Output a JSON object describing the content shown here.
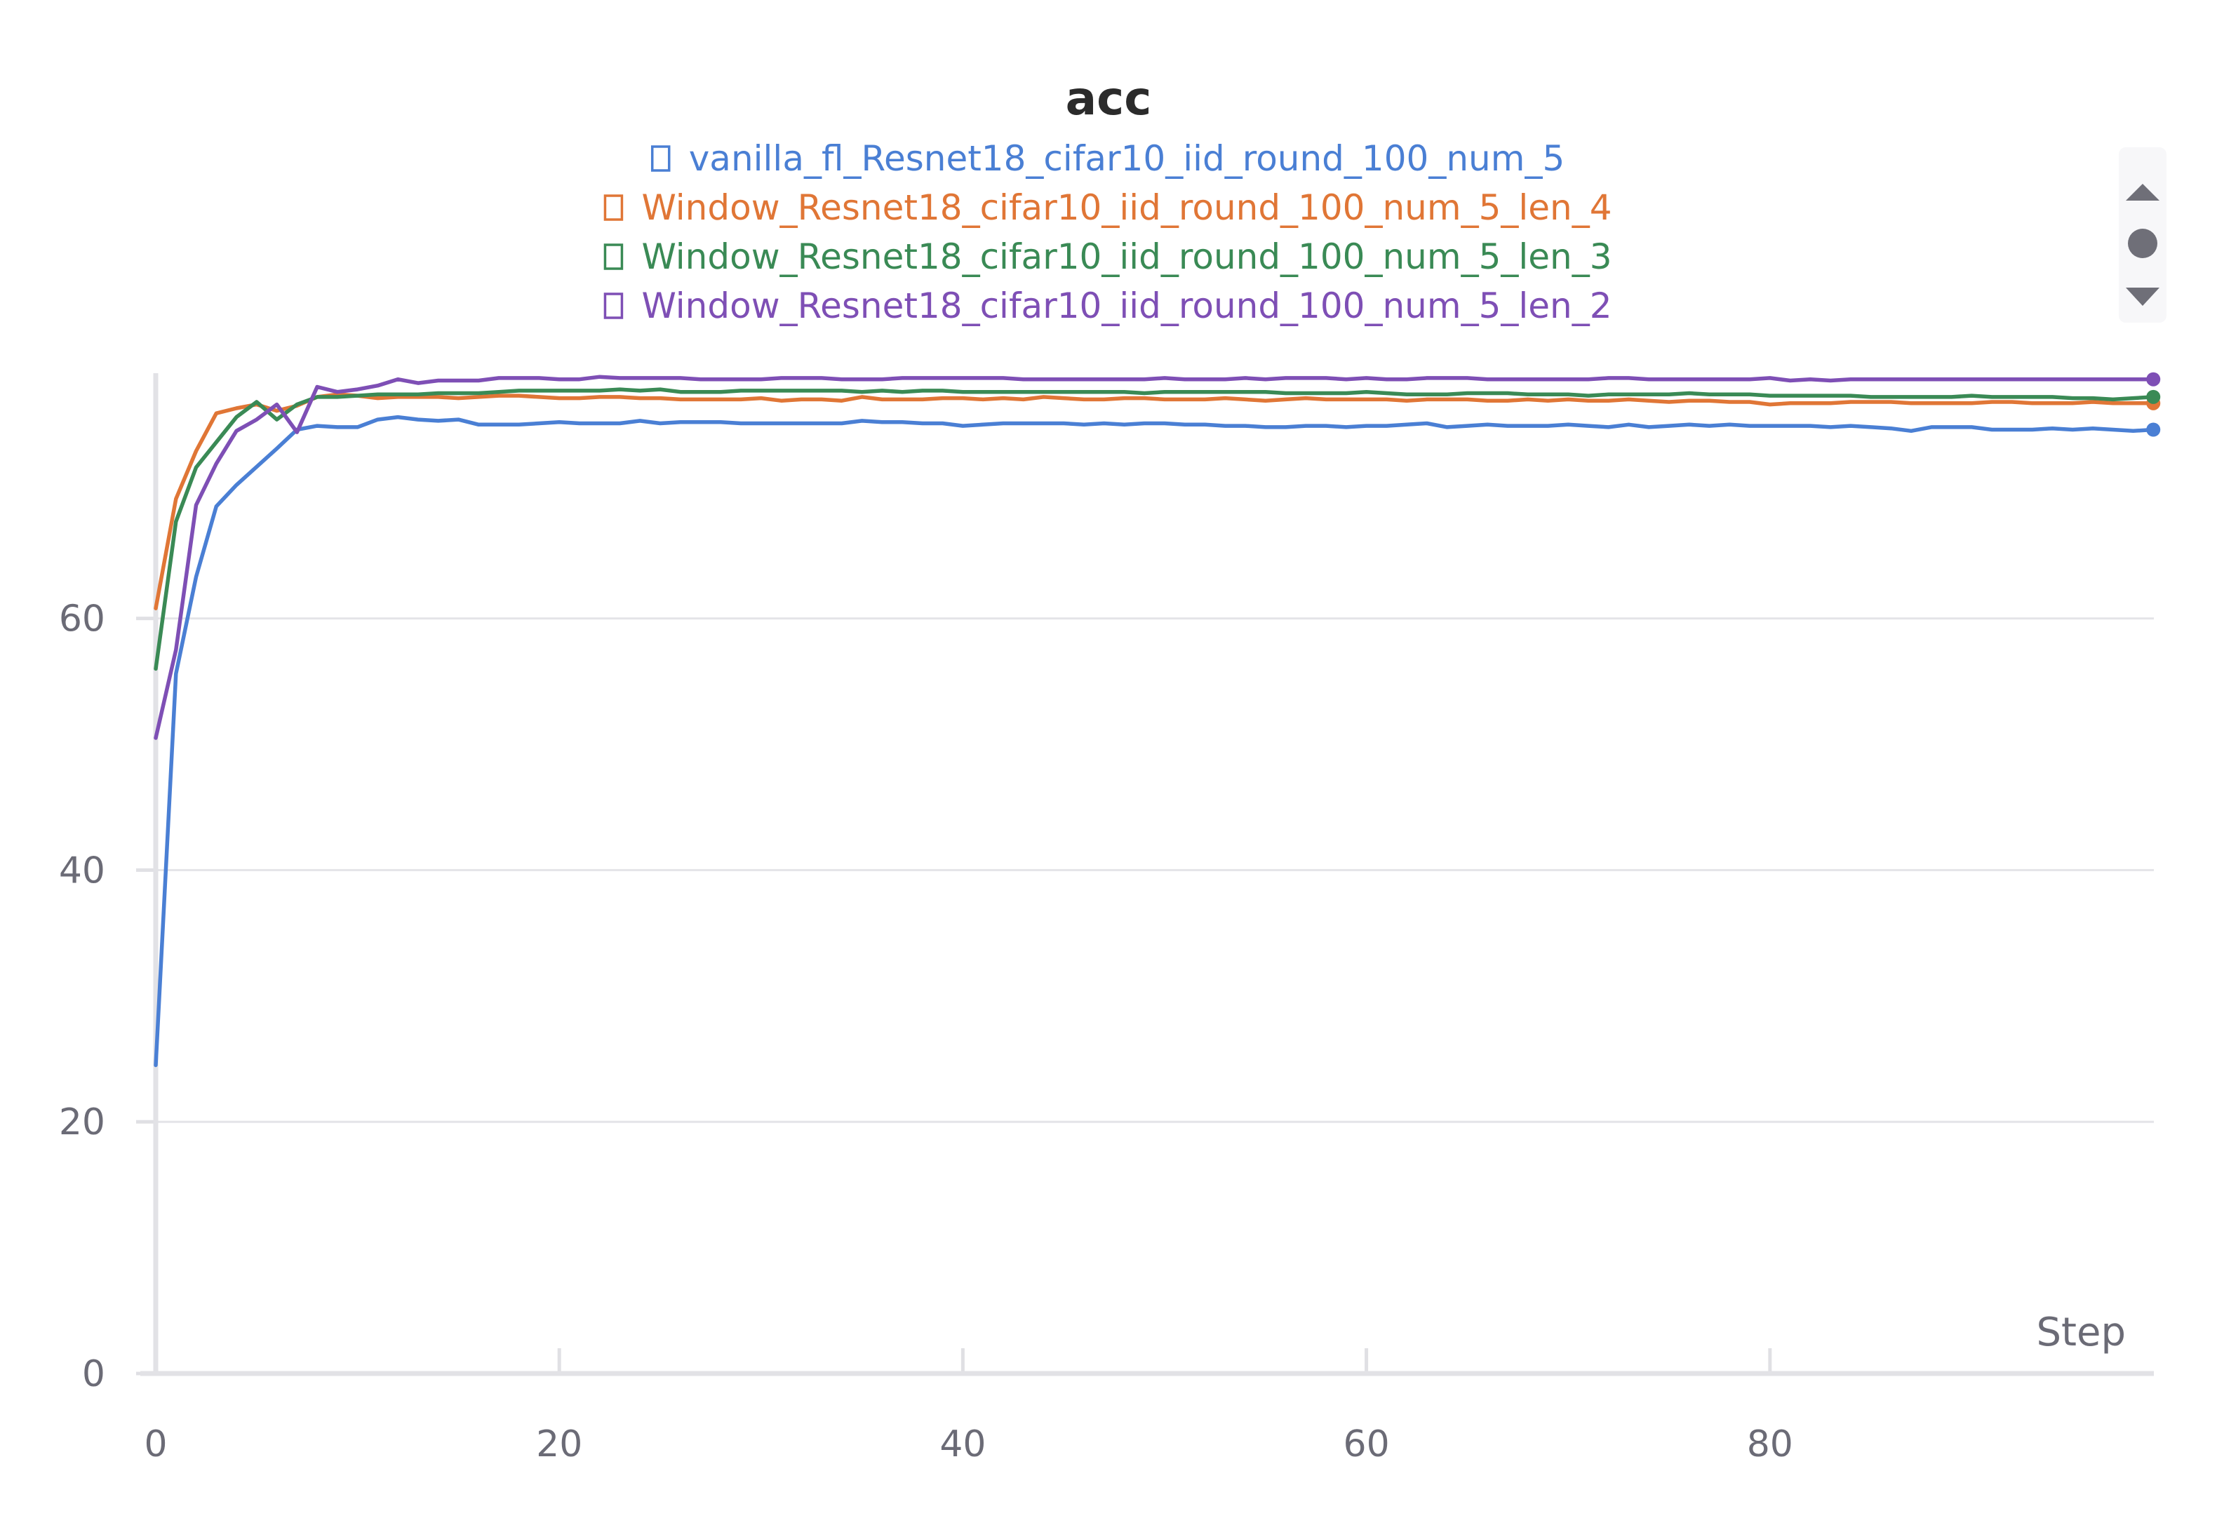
{
  "chart_data": {
    "type": "line",
    "title": "acc",
    "xlabel": "Step",
    "ylabel": "",
    "xlim": [
      0,
      99
    ],
    "ylim": [
      0,
      80
    ],
    "xticks": [
      0,
      20,
      40,
      60,
      80
    ],
    "yticks": [
      0,
      20,
      40,
      60
    ],
    "grid": true,
    "legend_position": "top-center",
    "series": [
      {
        "name": "vanilla_fl_Resnet18_cifar10_iid_round_100_num_5",
        "color": "#4a7fd4",
        "x": [
          0,
          1,
          2,
          3,
          4,
          6,
          7,
          8,
          9,
          10,
          11,
          12,
          13,
          14,
          15,
          16,
          17,
          18,
          19,
          20,
          21,
          22,
          23,
          24,
          25,
          26,
          27,
          28,
          29,
          30,
          31,
          32,
          33,
          34,
          35,
          36,
          37,
          38,
          39,
          40,
          41,
          42,
          43,
          44,
          45,
          46,
          47,
          48,
          49,
          50,
          51,
          52,
          53,
          54,
          55,
          56,
          57,
          58,
          59,
          60,
          61,
          62,
          63,
          64,
          65,
          66,
          67,
          68,
          69,
          70,
          71,
          72,
          73,
          74,
          75,
          76,
          77,
          78,
          79,
          80,
          81,
          82,
          83,
          84,
          85,
          86,
          87,
          88,
          89,
          90,
          91,
          92,
          93,
          94,
          95,
          96,
          97,
          98,
          99
        ],
        "y": [
          24.5,
          55.6,
          63.3,
          68.9,
          70.6,
          73.5,
          75.0,
          75.3,
          75.2,
          75.2,
          75.8,
          76.0,
          75.8,
          75.7,
          75.8,
          75.4,
          75.4,
          75.4,
          75.5,
          75.6,
          75.5,
          75.5,
          75.5,
          75.7,
          75.5,
          75.6,
          75.6,
          75.6,
          75.5,
          75.5,
          75.5,
          75.5,
          75.5,
          75.5,
          75.7,
          75.6,
          75.6,
          75.5,
          75.5,
          75.3,
          75.4,
          75.5,
          75.5,
          75.5,
          75.5,
          75.4,
          75.5,
          75.4,
          75.5,
          75.5,
          75.4,
          75.4,
          75.3,
          75.3,
          75.2,
          75.2,
          75.3,
          75.3,
          75.2,
          75.3,
          75.3,
          75.4,
          75.5,
          75.2,
          75.3,
          75.4,
          75.3,
          75.3,
          75.3,
          75.4,
          75.3,
          75.2,
          75.4,
          75.2,
          75.3,
          75.4,
          75.3,
          75.4,
          75.3,
          75.3,
          75.3,
          75.3,
          75.2,
          75.3,
          75.2,
          75.1,
          74.9,
          75.2,
          75.2,
          75.2,
          75.0,
          75.0,
          75.0,
          75.1,
          75.0,
          75.1,
          75.0,
          74.9,
          75.0
        ]
      },
      {
        "name": "Window_Resnet18_cifar10_iid_round_100_num_5_len_4",
        "color": "#e07636",
        "x": [
          0,
          1,
          2,
          3,
          4,
          5,
          6,
          7,
          8,
          9,
          10,
          11,
          12,
          13,
          14,
          15,
          16,
          17,
          18,
          19,
          20,
          21,
          22,
          23,
          24,
          25,
          26,
          27,
          28,
          29,
          30,
          31,
          32,
          33,
          34,
          35,
          36,
          37,
          38,
          39,
          40,
          41,
          42,
          43,
          44,
          45,
          46,
          47,
          48,
          49,
          50,
          51,
          52,
          53,
          54,
          55,
          56,
          57,
          58,
          59,
          60,
          61,
          62,
          63,
          64,
          65,
          66,
          67,
          68,
          69,
          70,
          71,
          72,
          73,
          74,
          75,
          76,
          77,
          78,
          79,
          80,
          81,
          82,
          83,
          84,
          85,
          86,
          87,
          88,
          89,
          90,
          91,
          92,
          93,
          94,
          95,
          96,
          97,
          98,
          99
        ],
        "y": [
          60.8,
          69.5,
          73.3,
          76.3,
          76.7,
          77.0,
          76.5,
          76.9,
          77.6,
          77.8,
          77.7,
          77.5,
          77.6,
          77.6,
          77.6,
          77.5,
          77.6,
          77.7,
          77.7,
          77.6,
          77.5,
          77.5,
          77.6,
          77.6,
          77.5,
          77.5,
          77.4,
          77.4,
          77.4,
          77.4,
          77.5,
          77.3,
          77.4,
          77.4,
          77.3,
          77.6,
          77.4,
          77.4,
          77.4,
          77.5,
          77.5,
          77.4,
          77.5,
          77.4,
          77.6,
          77.5,
          77.4,
          77.4,
          77.5,
          77.5,
          77.4,
          77.4,
          77.4,
          77.5,
          77.4,
          77.3,
          77.4,
          77.5,
          77.4,
          77.4,
          77.4,
          77.4,
          77.3,
          77.4,
          77.4,
          77.4,
          77.3,
          77.3,
          77.4,
          77.3,
          77.4,
          77.3,
          77.3,
          77.4,
          77.3,
          77.2,
          77.3,
          77.3,
          77.2,
          77.2,
          77.0,
          77.1,
          77.1,
          77.1,
          77.2,
          77.2,
          77.2,
          77.1,
          77.1,
          77.1,
          77.1,
          77.2,
          77.2,
          77.1,
          77.1,
          77.1,
          77.2,
          77.1,
          77.1,
          77.1
        ]
      },
      {
        "name": "Window_Resnet18_cifar10_iid_round_100_num_5_len_3",
        "color": "#3a8a55",
        "x": [
          0,
          1,
          2,
          3,
          4,
          5,
          6,
          7,
          8,
          9,
          10,
          11,
          12,
          13,
          14,
          15,
          16,
          17,
          18,
          19,
          20,
          21,
          22,
          23,
          24,
          25,
          26,
          27,
          28,
          29,
          30,
          31,
          32,
          33,
          34,
          35,
          36,
          37,
          38,
          39,
          40,
          41,
          42,
          43,
          44,
          45,
          46,
          47,
          48,
          49,
          50,
          51,
          52,
          53,
          54,
          55,
          56,
          57,
          58,
          59,
          60,
          61,
          62,
          63,
          64,
          65,
          66,
          67,
          68,
          69,
          70,
          71,
          72,
          73,
          74,
          75,
          76,
          77,
          78,
          79,
          80,
          81,
          82,
          83,
          84,
          85,
          86,
          87,
          88,
          89,
          90,
          91,
          92,
          93,
          94,
          95,
          96,
          97,
          98,
          99
        ],
        "y": [
          56.0,
          67.7,
          72.0,
          74.0,
          76.0,
          77.2,
          75.8,
          77.0,
          77.6,
          77.6,
          77.7,
          77.8,
          77.8,
          77.8,
          77.9,
          77.9,
          77.9,
          78.0,
          78.1,
          78.1,
          78.1,
          78.1,
          78.1,
          78.2,
          78.1,
          78.2,
          78.0,
          78.0,
          78.0,
          78.1,
          78.1,
          78.1,
          78.1,
          78.1,
          78.1,
          78.0,
          78.1,
          78.0,
          78.1,
          78.1,
          78.0,
          78.0,
          78.0,
          78.0,
          78.0,
          78.0,
          78.0,
          78.0,
          78.0,
          77.9,
          78.0,
          78.0,
          78.0,
          78.0,
          78.0,
          78.0,
          77.9,
          77.9,
          77.9,
          77.9,
          78.0,
          77.9,
          77.8,
          77.8,
          77.8,
          77.9,
          77.9,
          77.9,
          77.8,
          77.8,
          77.8,
          77.7,
          77.8,
          77.8,
          77.8,
          77.8,
          77.9,
          77.8,
          77.8,
          77.8,
          77.7,
          77.7,
          77.7,
          77.7,
          77.7,
          77.6,
          77.6,
          77.6,
          77.6,
          77.6,
          77.7,
          77.6,
          77.6,
          77.6,
          77.6,
          77.5,
          77.5,
          77.4,
          77.5,
          77.6
        ]
      },
      {
        "name": "Window_Resnet18_cifar10_iid_round_100_num_5_len_2",
        "color": "#7e4fb5",
        "x": [
          0,
          1,
          2,
          3,
          4,
          5,
          6,
          7,
          8,
          9,
          10,
          11,
          12,
          13,
          14,
          15,
          16,
          17,
          18,
          19,
          20,
          21,
          22,
          23,
          24,
          25,
          26,
          27,
          28,
          29,
          30,
          31,
          32,
          33,
          34,
          35,
          36,
          37,
          38,
          39,
          40,
          41,
          42,
          43,
          44,
          45,
          46,
          47,
          48,
          49,
          50,
          51,
          52,
          53,
          54,
          55,
          56,
          57,
          58,
          59,
          60,
          61,
          62,
          63,
          64,
          65,
          66,
          67,
          68,
          69,
          70,
          71,
          72,
          73,
          74,
          75,
          76,
          77,
          78,
          79,
          80,
          81,
          82,
          83,
          84,
          85,
          86,
          87,
          88,
          89,
          90,
          91,
          92,
          93,
          94,
          95,
          96,
          97,
          98,
          99
        ],
        "y": [
          50.5,
          57.5,
          69.0,
          72.3,
          74.9,
          75.8,
          77.0,
          74.8,
          78.4,
          78.0,
          78.2,
          78.5,
          79.0,
          78.7,
          78.9,
          78.9,
          78.9,
          79.1,
          79.1,
          79.1,
          79.0,
          79.0,
          79.2,
          79.1,
          79.1,
          79.1,
          79.1,
          79.0,
          79.0,
          79.0,
          79.0,
          79.1,
          79.1,
          79.1,
          79.0,
          79.0,
          79.0,
          79.1,
          79.1,
          79.1,
          79.1,
          79.1,
          79.1,
          79.0,
          79.0,
          79.0,
          79.0,
          79.0,
          79.0,
          79.0,
          79.1,
          79.0,
          79.0,
          79.0,
          79.1,
          79.0,
          79.1,
          79.1,
          79.1,
          79.0,
          79.1,
          79.0,
          79.0,
          79.1,
          79.1,
          79.1,
          79.0,
          79.0,
          79.0,
          79.0,
          79.0,
          79.0,
          79.1,
          79.1,
          79.0,
          79.0,
          79.0,
          79.0,
          79.0,
          79.0,
          79.1,
          78.9,
          79.0,
          78.9,
          79.0,
          79.0,
          79.0,
          79.0,
          79.0,
          79.0,
          79.0,
          79.0,
          79.0,
          79.0,
          79.0,
          79.0,
          79.0,
          79.0,
          79.0,
          79.0
        ]
      }
    ]
  }
}
